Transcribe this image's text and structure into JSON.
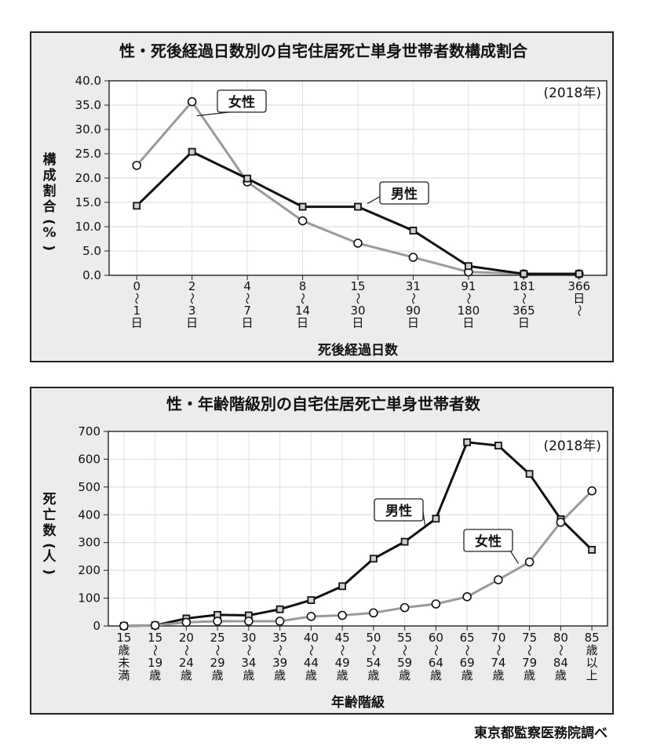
{
  "chart_data": [
    {
      "type": "line",
      "title": "性・死後経過日数別の自宅住居死亡単身世帯者数構成割合",
      "note": "(2018年)",
      "xlabel": "死後経過日数",
      "ylabel": "構成割合(%)",
      "ylim": [
        0,
        40
      ],
      "yticks": [
        "0.0",
        "5.0",
        "10.0",
        "15.0",
        "20.0",
        "25.0",
        "30.0",
        "35.0",
        "40.0"
      ],
      "categories": [
        [
          "0",
          "〜",
          "1",
          "日"
        ],
        [
          "2",
          "〜",
          "3",
          "日"
        ],
        [
          "4",
          "〜",
          "7",
          "日"
        ],
        [
          "8",
          "〜",
          "14",
          "日"
        ],
        [
          "15",
          "〜",
          "30",
          "日"
        ],
        [
          "31",
          "〜",
          "90",
          "日"
        ],
        [
          "91",
          "〜",
          "180",
          "日"
        ],
        [
          "181",
          "〜",
          "365",
          "日"
        ],
        [
          "366",
          "日",
          "〜"
        ]
      ],
      "series": [
        {
          "name": "男性",
          "color": "#111111",
          "marker": "square",
          "values": [
            14.3,
            25.4,
            19.9,
            14.1,
            14.1,
            9.2,
            1.9,
            0.3,
            0.3
          ]
        },
        {
          "name": "女性",
          "color": "#9a9a9a",
          "marker": "circle",
          "values": [
            22.6,
            35.7,
            19.2,
            11.2,
            6.6,
            3.7,
            0.7,
            0.3,
            0.3
          ]
        }
      ],
      "grid": true
    },
    {
      "type": "line",
      "title": "性・年齢階級別の自宅住居死亡単身世帯者数",
      "note": "(2018年)",
      "xlabel": "年齢階級",
      "ylabel": "死亡数(人)",
      "ylim": [
        0,
        700
      ],
      "yticks": [
        "0",
        "100",
        "200",
        "300",
        "400",
        "500",
        "600",
        "700"
      ],
      "categories": [
        [
          "15",
          "歳",
          "未",
          "満"
        ],
        [
          "15",
          "〜",
          "19",
          "歳"
        ],
        [
          "20",
          "〜",
          "24",
          "歳"
        ],
        [
          "25",
          "〜",
          "29",
          "歳"
        ],
        [
          "30",
          "〜",
          "34",
          "歳"
        ],
        [
          "35",
          "〜",
          "39",
          "歳"
        ],
        [
          "40",
          "〜",
          "44",
          "歳"
        ],
        [
          "45",
          "〜",
          "49",
          "歳"
        ],
        [
          "50",
          "〜",
          "54",
          "歳"
        ],
        [
          "55",
          "〜",
          "59",
          "歳"
        ],
        [
          "60",
          "〜",
          "64",
          "歳"
        ],
        [
          "65",
          "〜",
          "69",
          "歳"
        ],
        [
          "70",
          "〜",
          "74",
          "歳"
        ],
        [
          "75",
          "〜",
          "79",
          "歳"
        ],
        [
          "80",
          "〜",
          "84",
          "歳"
        ],
        [
          "85",
          "歳",
          "以",
          "上"
        ]
      ],
      "series": [
        {
          "name": "男性",
          "color": "#111111",
          "marker": "square",
          "values": [
            0,
            2,
            27,
            40,
            38,
            60,
            93,
            143,
            242,
            303,
            386,
            661,
            649,
            547,
            384,
            274
          ]
        },
        {
          "name": "女性",
          "color": "#9a9a9a",
          "marker": "circle",
          "values": [
            0,
            2,
            13,
            17,
            17,
            17,
            34,
            38,
            47,
            66,
            79,
            105,
            166,
            230,
            373,
            486
          ]
        }
      ],
      "grid": true
    }
  ],
  "footer": {
    "credit": "東京都監察医務院調べ"
  }
}
